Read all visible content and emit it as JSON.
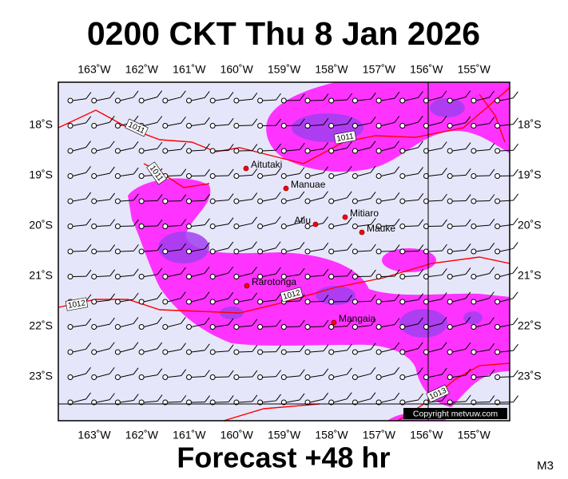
{
  "header": {
    "title": "0200 CKT Thu 8 Jan 2026"
  },
  "map": {
    "lon_labels": [
      "163˚W",
      "162˚W",
      "161˚W",
      "160˚W",
      "159˚W",
      "158˚W",
      "157˚W",
      "156˚W",
      "155˚W"
    ],
    "lat_labels": [
      "18˚S",
      "19˚S",
      "20˚S",
      "21˚S",
      "22˚S",
      "23˚S"
    ],
    "places": [
      "Aitutaki",
      "Manuae",
      "Atiu",
      "Mitiaro",
      "Mauke",
      "Rarotonga",
      "Mangaia"
    ],
    "isobar_labels": [
      "1011",
      "1011",
      "1011",
      "1012",
      "1012",
      "1013"
    ],
    "copyright": "Copyright metvuw.com"
  },
  "footer": {
    "forecast": "Forecast +48 hr",
    "code": "M3"
  }
}
